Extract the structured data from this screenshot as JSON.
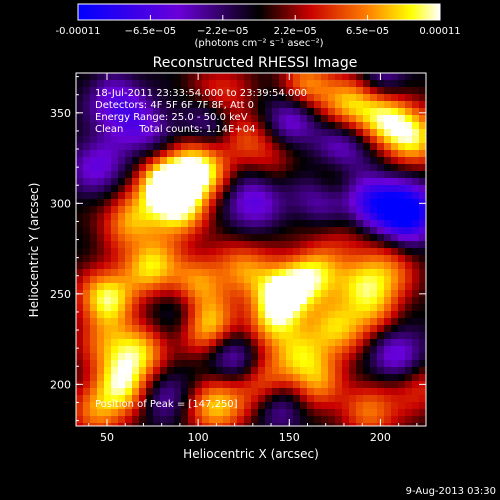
{
  "chart_data": {
    "type": "heatmap",
    "title": "Reconstructed RHESSI Image",
    "xlabel": "Heliocentric X (arcsec)",
    "ylabel": "Heliocentric Y (arcsec)",
    "xlim": [
      33,
      225
    ],
    "ylim": [
      177,
      372
    ],
    "xticks": [
      "50",
      "100",
      "150",
      "200"
    ],
    "yticks": [
      "200",
      "250",
      "300",
      "350"
    ],
    "colorbar": {
      "ticks": [
        "-0.00011",
        "−6.5e−05",
        "−2.2e−05",
        "2.2e−05",
        "6.5e−05",
        "0.00011"
      ],
      "label": "(photons cm⁻² s⁻¹ asec⁻²)",
      "range": [
        -0.00011,
        0.00011
      ],
      "colors": [
        "#0000ff",
        "#6a00d8",
        "#000000",
        "#c80000",
        "#ff8000",
        "#ffff00",
        "#ffffff"
      ]
    },
    "annotations": [
      "18-Jul-2011 23:33:54.000 to 23:39:54.000",
      "Detectors: 4F 5F 6F 7F 8F, Att 0",
      "Energy Range: 25.0 - 50.0 keV",
      "Clean     Total counts: 1.14E+04"
    ],
    "peak_text": "Position of Peak = [147,250]",
    "peak": [
      147,
      250
    ],
    "blobs": [
      {
        "x": 82,
        "y": 310,
        "v": 1.0
      },
      {
        "x": 100,
        "y": 318,
        "v": 0.9
      },
      {
        "x": 90,
        "y": 295,
        "v": 0.6
      },
      {
        "x": 62,
        "y": 290,
        "v": 0.55
      },
      {
        "x": 120,
        "y": 340,
        "v": 0.5
      },
      {
        "x": 112,
        "y": 360,
        "v": 0.45
      },
      {
        "x": 140,
        "y": 330,
        "v": 0.35
      },
      {
        "x": 50,
        "y": 248,
        "v": 0.8
      },
      {
        "x": 75,
        "y": 265,
        "v": 0.7
      },
      {
        "x": 100,
        "y": 255,
        "v": 0.55
      },
      {
        "x": 125,
        "y": 265,
        "v": 0.5
      },
      {
        "x": 147,
        "y": 250,
        "v": 1.0
      },
      {
        "x": 165,
        "y": 262,
        "v": 0.7
      },
      {
        "x": 105,
        "y": 232,
        "v": 0.75
      },
      {
        "x": 140,
        "y": 232,
        "v": 0.5
      },
      {
        "x": 175,
        "y": 230,
        "v": 0.6
      },
      {
        "x": 190,
        "y": 255,
        "v": 0.45
      },
      {
        "x": 160,
        "y": 285,
        "v": 0.4
      },
      {
        "x": 205,
        "y": 262,
        "v": 0.45
      },
      {
        "x": 195,
        "y": 240,
        "v": 0.4
      },
      {
        "x": 185,
        "y": 355,
        "v": 0.7
      },
      {
        "x": 205,
        "y": 345,
        "v": 0.75
      },
      {
        "x": 220,
        "y": 335,
        "v": 0.6
      },
      {
        "x": 160,
        "y": 365,
        "v": 0.55
      },
      {
        "x": 175,
        "y": 315,
        "v": 0.3
      },
      {
        "x": 60,
        "y": 200,
        "v": 0.75
      },
      {
        "x": 70,
        "y": 218,
        "v": 0.55
      },
      {
        "x": 50,
        "y": 222,
        "v": 0.45
      },
      {
        "x": 110,
        "y": 188,
        "v": 0.7
      },
      {
        "x": 135,
        "y": 200,
        "v": 0.55
      },
      {
        "x": 155,
        "y": 215,
        "v": 0.5
      },
      {
        "x": 165,
        "y": 200,
        "v": 0.5
      },
      {
        "x": 195,
        "y": 185,
        "v": 0.5
      },
      {
        "x": 220,
        "y": 200,
        "v": 0.4
      },
      {
        "x": 45,
        "y": 185,
        "v": 0.5
      },
      {
        "x": 185,
        "y": 283,
        "v": 0.25
      },
      {
        "x": 110,
        "y": 345,
        "v": -0.6
      },
      {
        "x": 150,
        "y": 345,
        "v": -0.55
      },
      {
        "x": 215,
        "y": 295,
        "v": -1.0
      },
      {
        "x": 195,
        "y": 300,
        "v": -0.7
      },
      {
        "x": 180,
        "y": 330,
        "v": -0.5
      },
      {
        "x": 165,
        "y": 300,
        "v": -0.45
      },
      {
        "x": 130,
        "y": 300,
        "v": -0.5
      },
      {
        "x": 55,
        "y": 355,
        "v": -0.5
      },
      {
        "x": 45,
        "y": 320,
        "v": -0.45
      },
      {
        "x": 210,
        "y": 215,
        "v": -0.55
      },
      {
        "x": 120,
        "y": 215,
        "v": -0.5
      },
      {
        "x": 90,
        "y": 240,
        "v": -0.35
      },
      {
        "x": 80,
        "y": 195,
        "v": -0.4
      },
      {
        "x": 145,
        "y": 190,
        "v": -0.45
      },
      {
        "x": 160,
        "y": 280,
        "v": -0.3
      },
      {
        "x": 200,
        "y": 370,
        "v": -0.35
      },
      {
        "x": 70,
        "y": 340,
        "v": -0.4
      }
    ]
  },
  "footer": {
    "timestamp": "9-Aug-2013 03:30"
  }
}
